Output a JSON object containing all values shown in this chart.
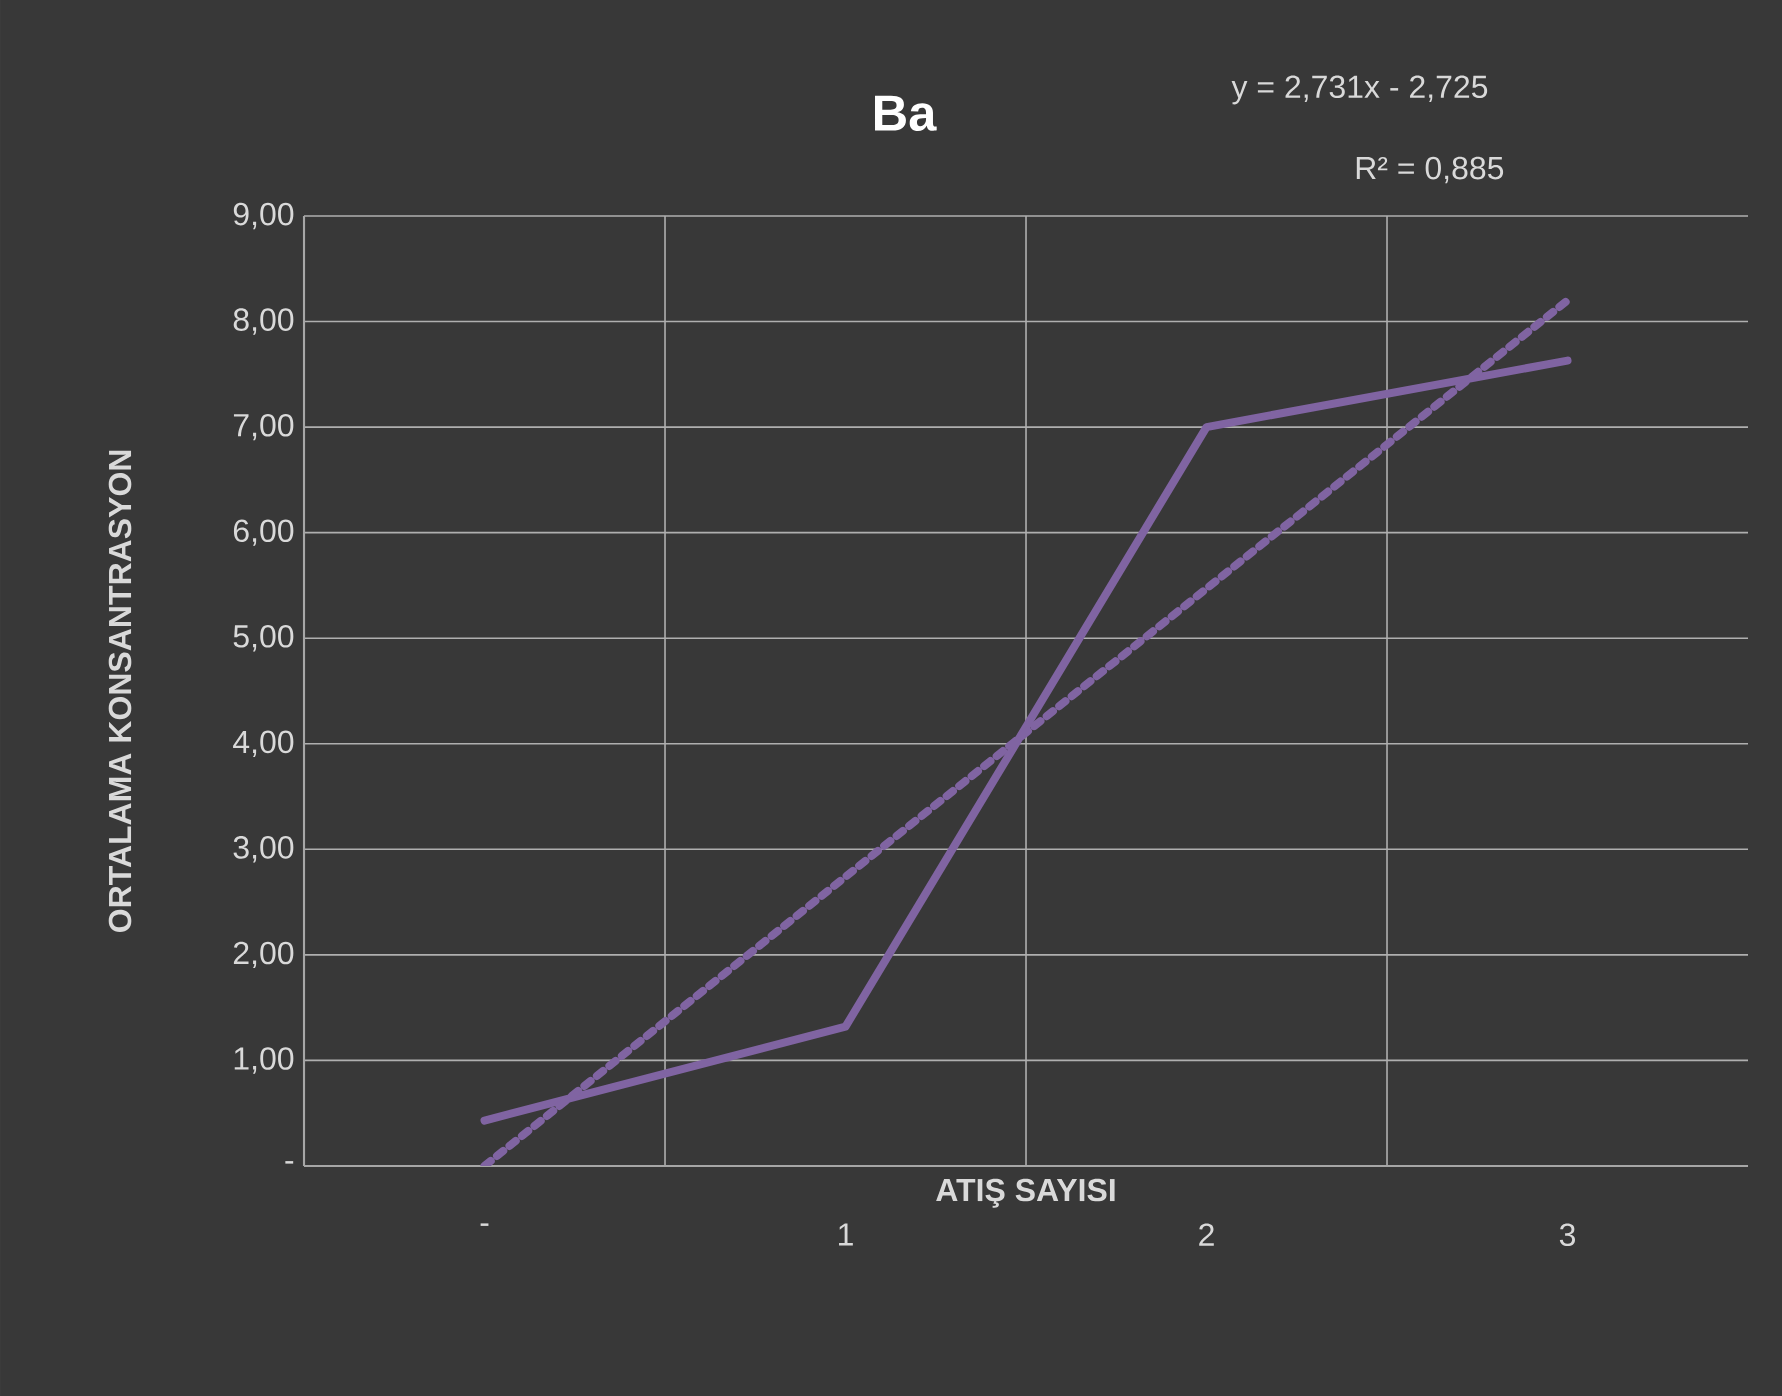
{
  "chart_data": {
    "type": "line",
    "title": "Ba",
    "xlabel": "ATIŞ SAYISI",
    "ylabel": "ORTALAMA KONSANTRASYON",
    "categories": [
      "-",
      "1",
      "2",
      "3"
    ],
    "series": [
      {
        "color": "#8064a2",
        "values": [
          0.43,
          1.32,
          7.0,
          7.63
        ],
        "line_style": "solid"
      },
      {
        "color": "#8064a2",
        "values": [
          0.0,
          2.74,
          5.47,
          8.2
        ],
        "line_style": "dashed"
      }
    ],
    "ylim": [
      0,
      9
    ],
    "yticks": [
      {
        "value": 0,
        "label": "-"
      },
      {
        "value": 1,
        "label": "1,00"
      },
      {
        "value": 2,
        "label": "2,00"
      },
      {
        "value": 3,
        "label": "3,00"
      },
      {
        "value": 4,
        "label": "4,00"
      },
      {
        "value": 5,
        "label": "5,00"
      },
      {
        "value": 6,
        "label": "6,00"
      },
      {
        "value": 7,
        "label": "7,00"
      },
      {
        "value": 8,
        "label": "8,00"
      },
      {
        "value": 9,
        "label": "9,00"
      }
    ],
    "grid": true,
    "annotations": [
      "y = 2,731x - 2,725",
      "R² = 0,885"
    ]
  }
}
